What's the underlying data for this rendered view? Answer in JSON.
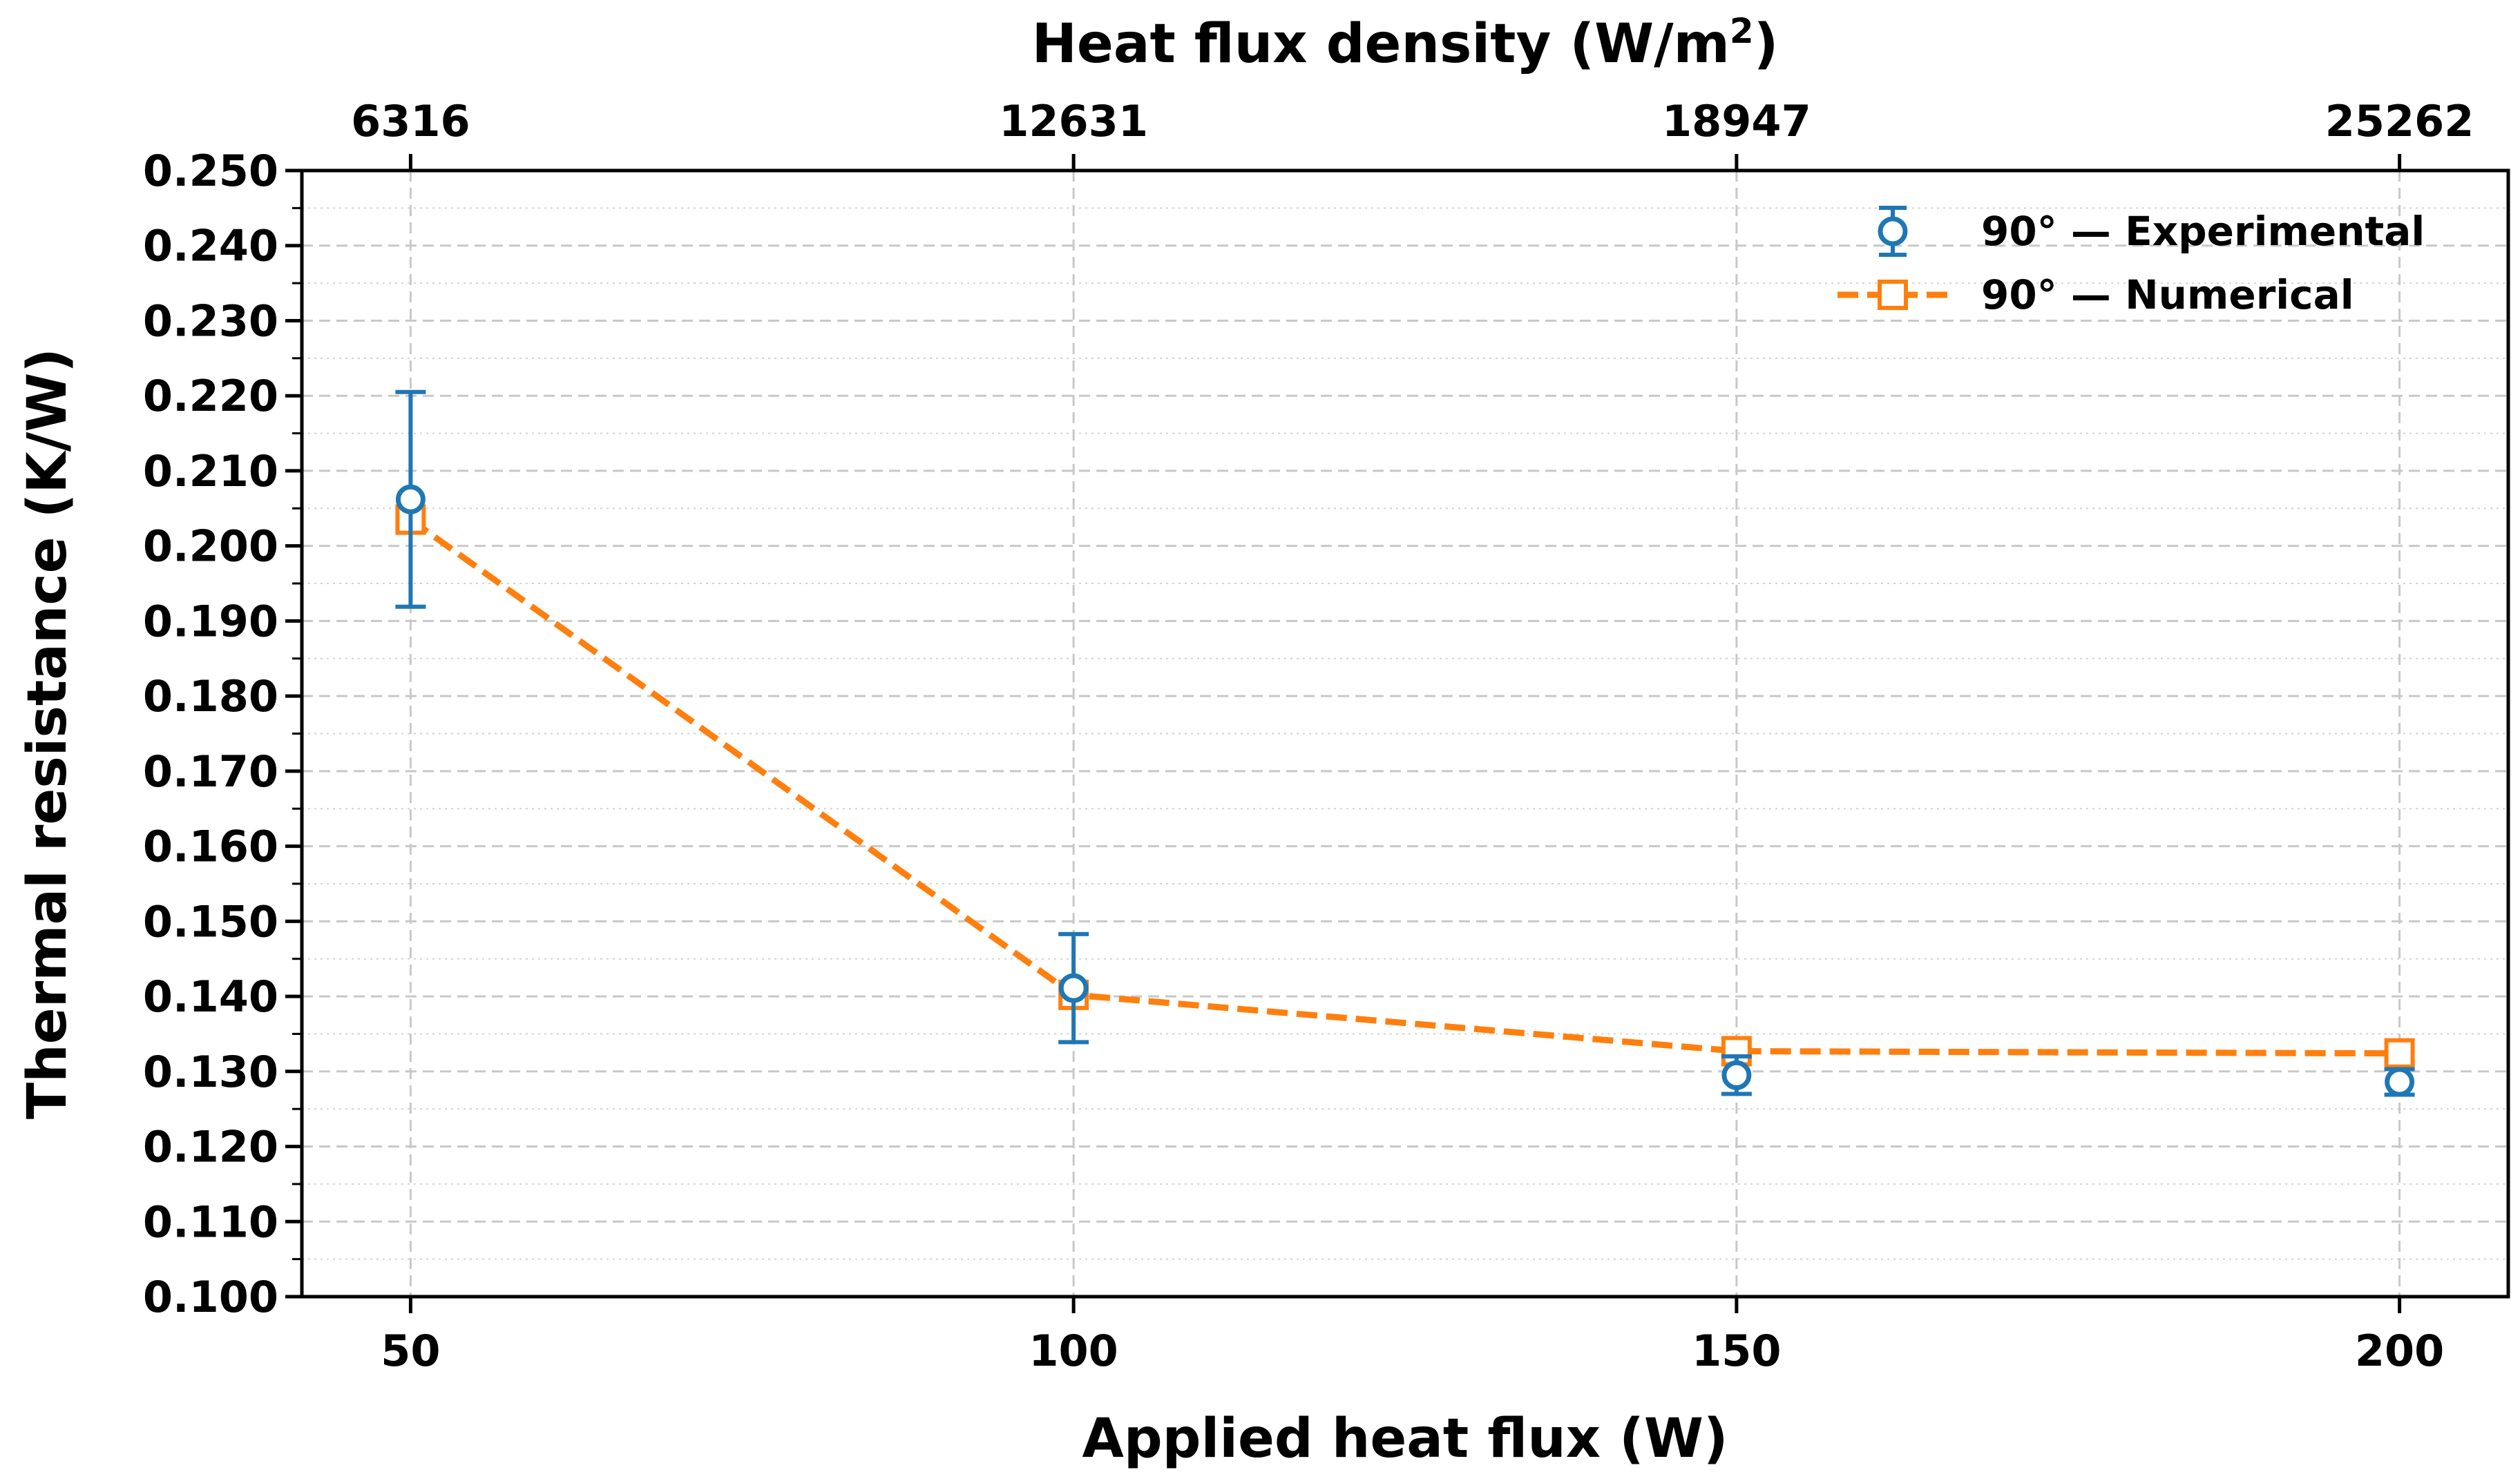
{
  "chart_data": {
    "type": "line",
    "title": "",
    "xlabel": "Applied heat flux (W)",
    "ylabel": "Thermal resistance (K/W)",
    "top_xlabel": "Heat flux density (W/m",
    "top_xlabel_sup": "2",
    "top_xlabel_close": ")",
    "xlim": [
      41.8,
      208.2
    ],
    "ylim": [
      0.1,
      0.25
    ],
    "x_ticks": [
      50,
      100,
      150,
      200
    ],
    "x_tick_labels": [
      "50",
      "100",
      "150",
      "200"
    ],
    "top_tick_labels": [
      "6316",
      "12631",
      "18947",
      "25262"
    ],
    "y_ticks": [
      0.1,
      0.11,
      0.12,
      0.13,
      0.14,
      0.15,
      0.16,
      0.17,
      0.18,
      0.19,
      0.2,
      0.21,
      0.22,
      0.23,
      0.24,
      0.25
    ],
    "y_tick_labels": [
      "0.100",
      "0.110",
      "0.120",
      "0.130",
      "0.140",
      "0.150",
      "0.160",
      "0.170",
      "0.180",
      "0.190",
      "0.200",
      "0.210",
      "0.220",
      "0.230",
      "0.240",
      "0.250"
    ],
    "grid": true,
    "legend_position": "top-right",
    "series": [
      {
        "name": "90° — Experimental",
        "style": "errorbar-circle",
        "color": "#1f77b4",
        "x": [
          50,
          100,
          150,
          200
        ],
        "y": [
          0.2062,
          0.1411,
          0.1295,
          0.1286
        ],
        "yerr": [
          0.0143,
          0.0072,
          0.0025,
          0.0017
        ]
      },
      {
        "name": "90° — Numerical",
        "style": "dashed-square",
        "color": "#ff7f0e",
        "x": [
          50,
          100,
          150,
          200
        ],
        "y": [
          0.2035,
          0.1402,
          0.1327,
          0.1324
        ]
      }
    ]
  }
}
